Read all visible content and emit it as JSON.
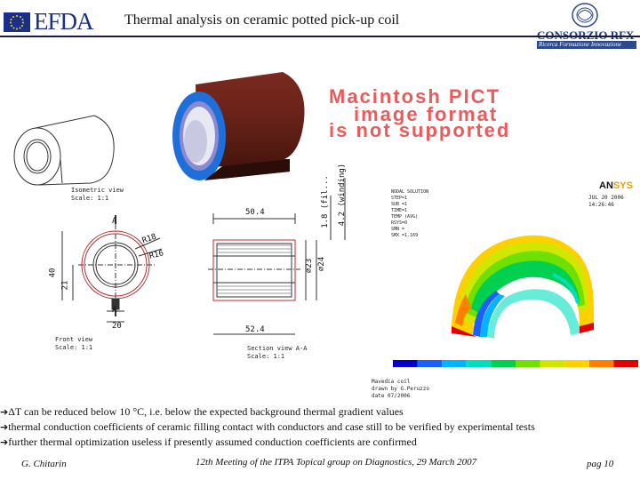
{
  "header": {
    "title": "Thermal analysis on ceramic potted pick-up coil",
    "left_logo_text": "EFDA",
    "right_logo_text": "CONSORZIO RFX",
    "right_logo_subtitle": "Ricerca Formazione Innovazione"
  },
  "image_placeholder": {
    "lines": [
      "Macintosh PICT",
      "image format",
      "is not supported"
    ]
  },
  "drawing": {
    "isometric_label": [
      "Isometric view",
      "Scale: 1:1"
    ],
    "front_label": [
      "Front view",
      "Scale: 1:1"
    ],
    "section_label": [
      "Section view A-A",
      "Scale: 1:1"
    ],
    "dims": {
      "r18": "R18",
      "r16": "R16",
      "h40": "40",
      "h21": "21",
      "w20": "20",
      "a_top": "A",
      "a_bottom": "A",
      "len_top": "50.4",
      "len_bottom": "52.4",
      "d23": "∅23",
      "d24": "∅24",
      "fill": "1.8 (fil...",
      "winding": "4.2 (winding)"
    }
  },
  "ansys": {
    "logo_left": "AN",
    "logo_right": "SYS",
    "date": "JUL 20 2006",
    "time": "14:26:46",
    "info": [
      "NODAL SOLUTION",
      "STEP=1",
      "SUB =1",
      "TIME=1",
      "TEMP       (AVG)",
      "RSYS=0",
      "SMN =",
      "SMX =1.169"
    ],
    "caption": [
      "Mavedia coil",
      "drawn by G.Peruzzo",
      "date 07/2006"
    ],
    "colors": [
      "#0000c8",
      "#1a60ff",
      "#00b4ff",
      "#00e0c0",
      "#00d050",
      "#70e000",
      "#d0e800",
      "#ffd000",
      "#ff8000",
      "#e00000"
    ]
  },
  "bullets": [
    "ΔT can be reduced below 10 °C, i.e. below the expected background thermal gradient values",
    "thermal conduction coefficients of ceramic filling contact with conductors and case still to be verified by experimental tests",
    "further thermal optimization useless if presently assumed conduction coefficients are confirmed"
  ],
  "footer": {
    "author": "G. Chitarin",
    "meeting": "12th Meeting of the ITPA Topical group on Diagnostics, 29 March 2007",
    "page": "pag 10"
  }
}
